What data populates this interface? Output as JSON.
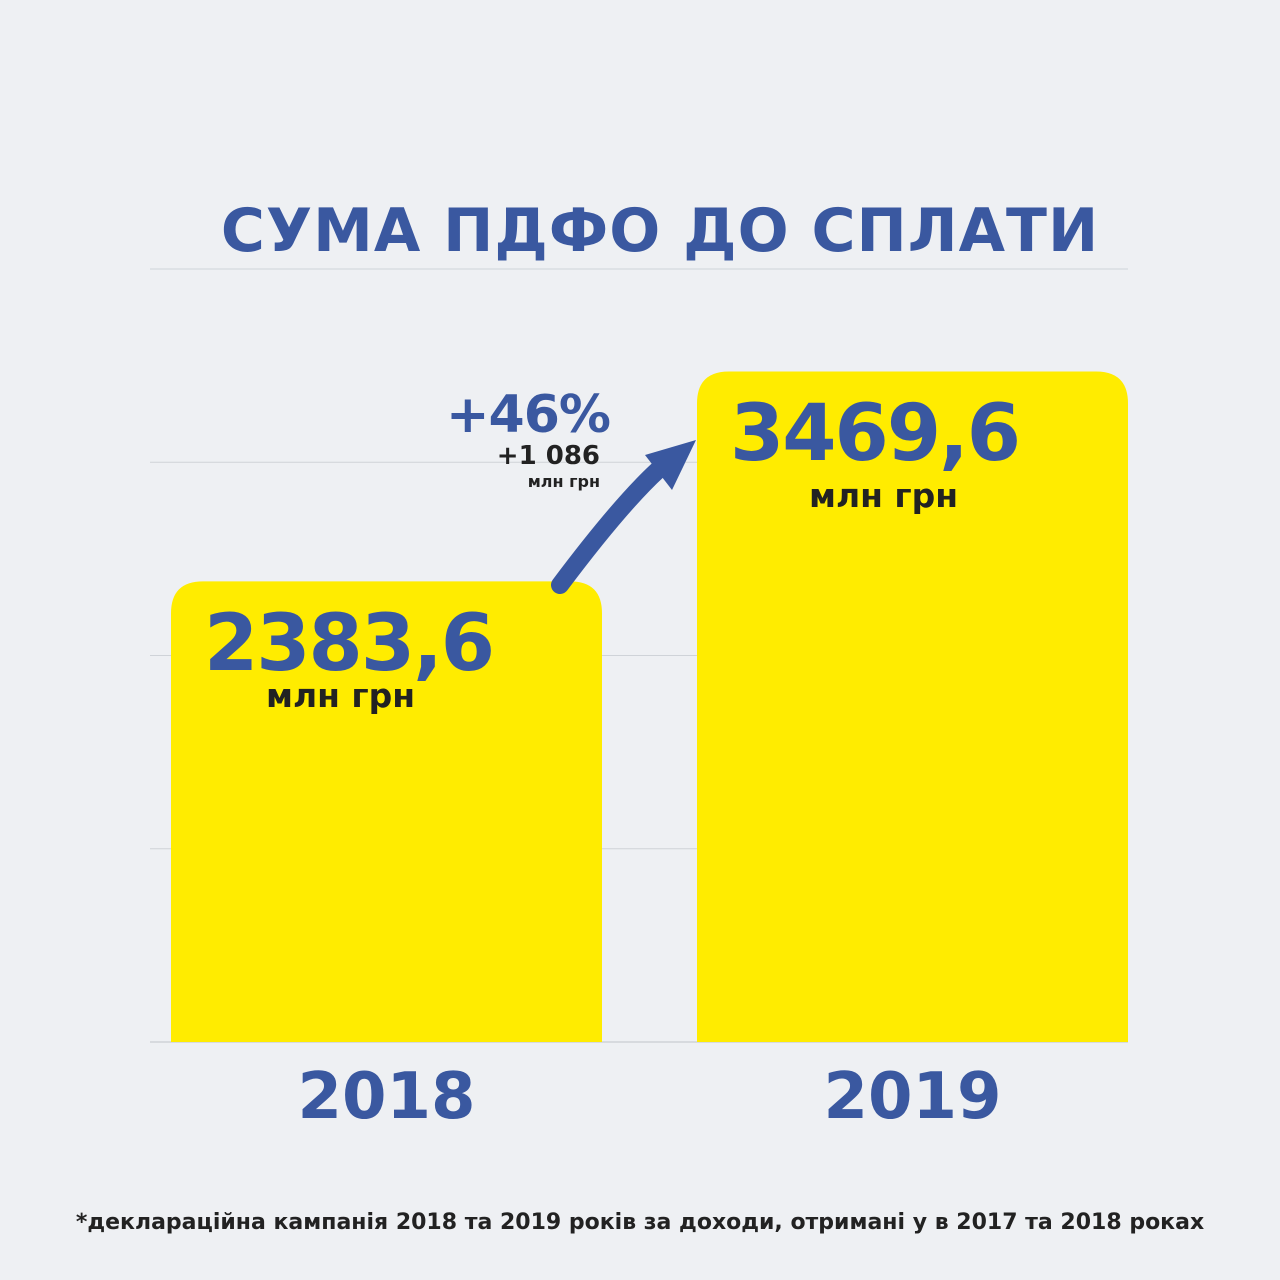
{
  "colors": {
    "background": "#eef0f3",
    "bar": "#ffec00",
    "accent": "#3a58a0",
    "text_dark": "#222222",
    "grid": "#cfd3d8"
  },
  "chart_data": {
    "type": "bar",
    "title": "СУМА ПДФО ДО СПЛАТИ",
    "categories": [
      "2018",
      "2019"
    ],
    "values": [
      2383.6,
      3469.6
    ],
    "value_labels": [
      "2383,6",
      "3469,6"
    ],
    "unit_label": "млн грн",
    "ylim": [
      0,
      4000
    ],
    "grid": true,
    "annotation": {
      "percent": "+46%",
      "absolute": "+1 086",
      "unit": "млн грн"
    }
  },
  "footnote": "*декларацiйна кампанiя 2018 та 2019 рокiв за доходи, отриманi у в 2017 та 2018 роках"
}
